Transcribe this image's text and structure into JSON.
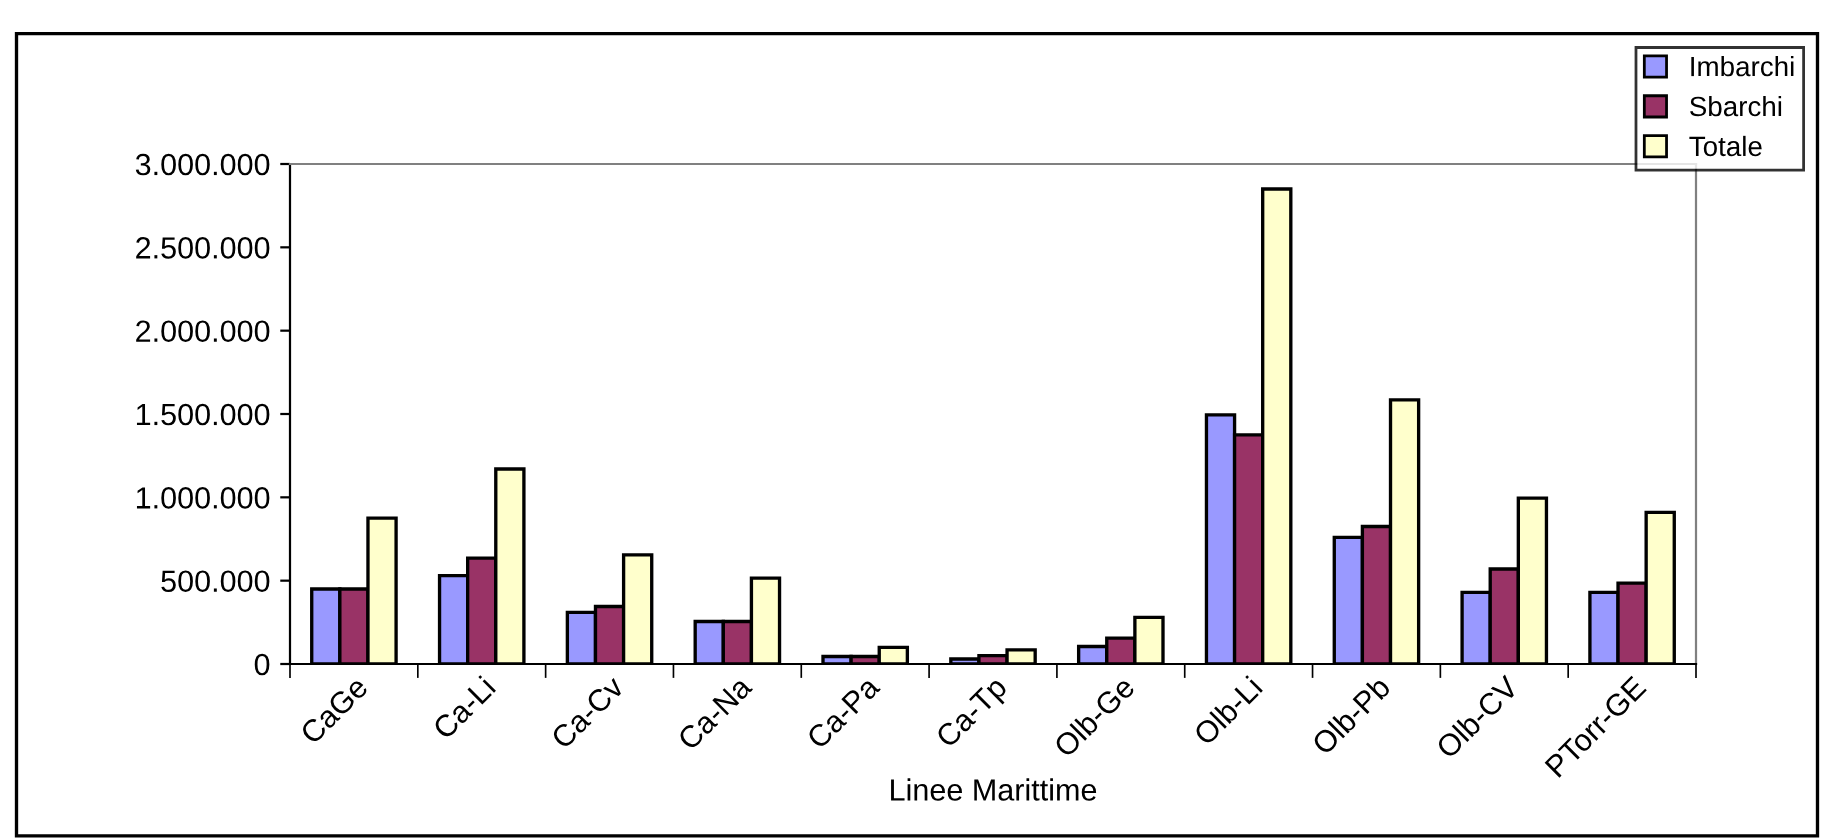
{
  "chart_data": {
    "type": "bar",
    "xlabel": "Linee Marittime",
    "categories": [
      "CaGe",
      "Ca-Li",
      "Ca-Cv",
      "Ca-Na",
      "Ca-Pa",
      "Ca-Tp",
      "Olb-Ge",
      "Olb-Li",
      "Olb-Pb",
      "Olb-CV",
      "PTorr-GE"
    ],
    "series": [
      {
        "name": "Imbarchi",
        "color": "#9999ff",
        "values": [
          450000,
          530000,
          310000,
          255000,
          45000,
          30000,
          105000,
          1495000,
          760000,
          430000,
          430000
        ]
      },
      {
        "name": "Sbarchi",
        "color": "#993366",
        "values": [
          450000,
          635000,
          345000,
          255000,
          45000,
          50000,
          155000,
          1375000,
          825000,
          570000,
          485000
        ]
      },
      {
        "name": "Totale",
        "color": "#ffffcc",
        "values": [
          875000,
          1170000,
          655000,
          515000,
          100000,
          85000,
          280000,
          2850000,
          1585000,
          995000,
          910000
        ]
      }
    ],
    "ylim": [
      0,
      3000000
    ],
    "yticks": [
      0,
      {
        "value": 500000,
        "label": "500.000"
      },
      {
        "value": 1000000,
        "label": "1.000.000"
      },
      {
        "value": 1500000,
        "label": "1.500.000"
      },
      {
        "value": 2000000,
        "label": "2.000.000"
      },
      {
        "value": 2500000,
        "label": "2.500.000"
      },
      {
        "value": 3000000,
        "label": "3.000.000"
      }
    ],
    "grid": false,
    "legend": "top right"
  }
}
